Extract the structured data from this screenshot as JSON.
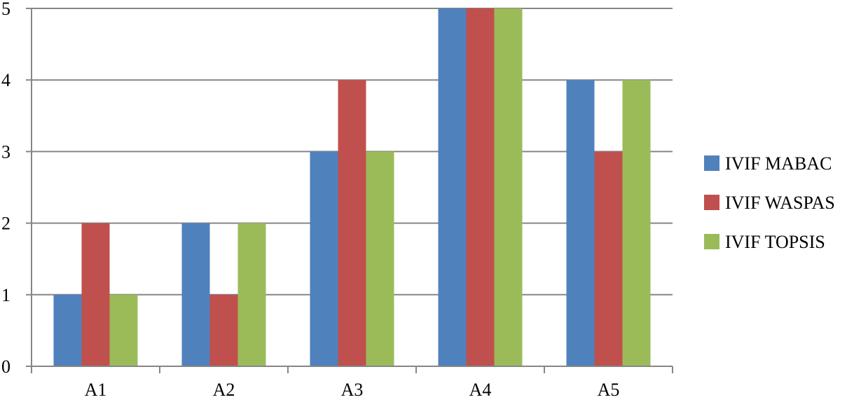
{
  "chart_data": {
    "type": "bar",
    "categories": [
      "A1",
      "A2",
      "A3",
      "A4",
      "A5"
    ],
    "series": [
      {
        "name": "IVIF MABAC",
        "color": "#4F81BD",
        "values": [
          1,
          2,
          3,
          5,
          4
        ]
      },
      {
        "name": "IVIF WASPAS",
        "color": "#C0504D",
        "values": [
          2,
          1,
          4,
          5,
          3
        ]
      },
      {
        "name": "IVIF TOPSIS",
        "color": "#9BBB59",
        "values": [
          1,
          2,
          3,
          5,
          4
        ]
      }
    ],
    "ylim": [
      0,
      5
    ],
    "yticks": [
      "0",
      "1",
      "2",
      "3",
      "4",
      "5"
    ],
    "grid": true,
    "legend_position": "right"
  }
}
